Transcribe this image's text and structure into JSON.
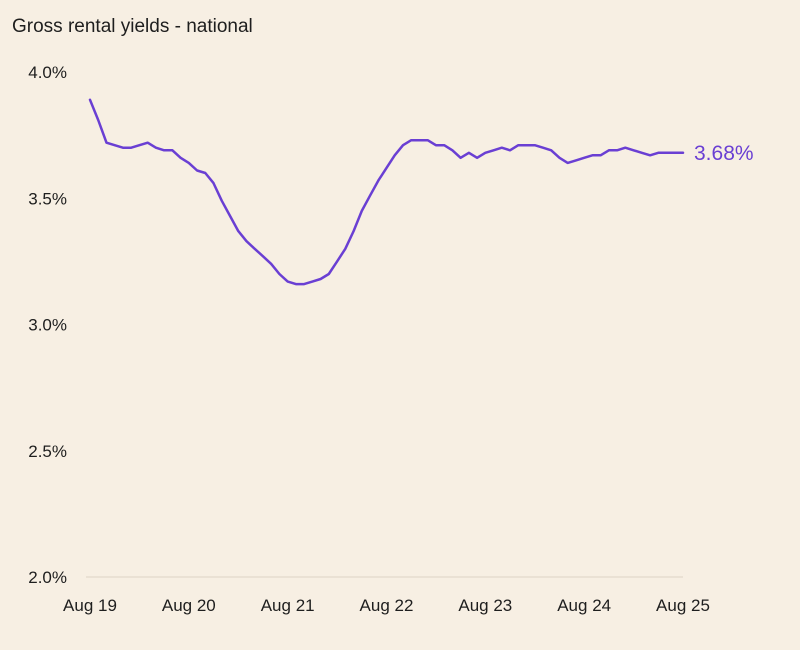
{
  "chart_data": {
    "type": "line",
    "title": "Gross rental yields - national",
    "xlabel": "",
    "ylabel": "",
    "ylim": [
      2.0,
      4.0
    ],
    "y_ticks": [
      {
        "value": 4.0,
        "label": "4.0%"
      },
      {
        "value": 3.5,
        "label": "3.5%"
      },
      {
        "value": 3.0,
        "label": "3.0%"
      },
      {
        "value": 2.5,
        "label": "2.5%"
      },
      {
        "value": 2.0,
        "label": "2.0%"
      }
    ],
    "x_range": [
      "2019-08",
      "2025-08"
    ],
    "x_ticks": [
      {
        "value": "2019-08",
        "label": "Aug 19"
      },
      {
        "value": "2020-08",
        "label": "Aug 20"
      },
      {
        "value": "2021-08",
        "label": "Aug 21"
      },
      {
        "value": "2022-08",
        "label": "Aug 22"
      },
      {
        "value": "2023-08",
        "label": "Aug 23"
      },
      {
        "value": "2024-08",
        "label": "Aug 24"
      },
      {
        "value": "2025-08",
        "label": "Aug 25"
      }
    ],
    "grid": false,
    "legend": "none",
    "series": [
      {
        "color": "#6a3fd3",
        "end_label": "3.68%",
        "x": [
          "2019-08",
          "2019-09",
          "2019-10",
          "2019-11",
          "2019-12",
          "2020-01",
          "2020-02",
          "2020-03",
          "2020-04",
          "2020-05",
          "2020-06",
          "2020-07",
          "2020-08",
          "2020-09",
          "2020-10",
          "2020-11",
          "2020-12",
          "2021-01",
          "2021-02",
          "2021-03",
          "2021-04",
          "2021-05",
          "2021-06",
          "2021-07",
          "2021-08",
          "2021-09",
          "2021-10",
          "2021-11",
          "2021-12",
          "2022-01",
          "2022-02",
          "2022-03",
          "2022-04",
          "2022-05",
          "2022-06",
          "2022-07",
          "2022-08",
          "2022-09",
          "2022-10",
          "2022-11",
          "2022-12",
          "2023-01",
          "2023-02",
          "2023-03",
          "2023-04",
          "2023-05",
          "2023-06",
          "2023-07",
          "2023-08",
          "2023-09",
          "2023-10",
          "2023-11",
          "2023-12",
          "2024-01",
          "2024-02",
          "2024-03",
          "2024-04",
          "2024-05",
          "2024-06",
          "2024-07",
          "2024-08",
          "2024-09",
          "2024-10",
          "2024-11",
          "2024-12",
          "2025-01",
          "2025-02",
          "2025-03",
          "2025-04",
          "2025-05",
          "2025-06",
          "2025-07",
          "2025-08"
        ],
        "y": [
          3.89,
          3.81,
          3.72,
          3.71,
          3.7,
          3.7,
          3.71,
          3.72,
          3.7,
          3.69,
          3.69,
          3.66,
          3.64,
          3.61,
          3.6,
          3.56,
          3.49,
          3.43,
          3.37,
          3.33,
          3.3,
          3.27,
          3.24,
          3.2,
          3.17,
          3.16,
          3.16,
          3.17,
          3.18,
          3.2,
          3.25,
          3.3,
          3.37,
          3.45,
          3.51,
          3.57,
          3.62,
          3.67,
          3.71,
          3.73,
          3.73,
          3.73,
          3.71,
          3.71,
          3.69,
          3.66,
          3.68,
          3.66,
          3.68,
          3.69,
          3.7,
          3.69,
          3.71,
          3.71,
          3.71,
          3.7,
          3.69,
          3.66,
          3.64,
          3.65,
          3.66,
          3.67,
          3.67,
          3.69,
          3.69,
          3.7,
          3.69,
          3.68,
          3.67,
          3.68,
          3.68,
          3.68,
          3.68
        ]
      }
    ]
  }
}
